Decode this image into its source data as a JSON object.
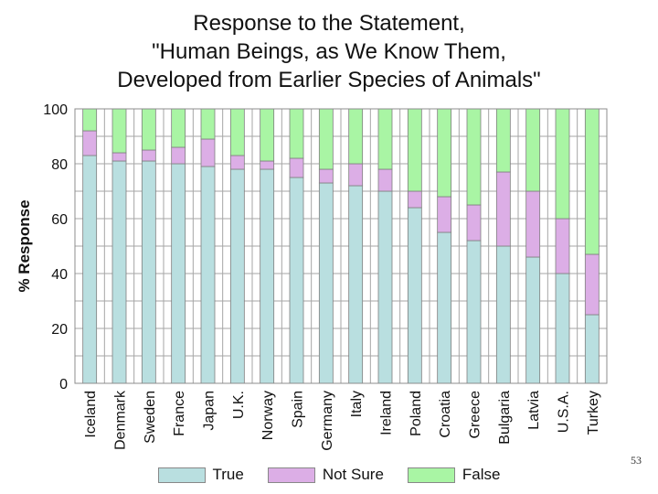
{
  "chart_data": {
    "type": "bar",
    "stacked": true,
    "title_lines": [
      "Response to the Statement,",
      "\"Human Beings, as We Know Them,",
      "Developed from Earlier Species of Animals\""
    ],
    "xlabel": "",
    "ylabel": "% Response",
    "ylim": [
      0,
      100
    ],
    "yticks": [
      0,
      20,
      40,
      60,
      80,
      100
    ],
    "grid": true,
    "legend_position": "bottom",
    "categories": [
      "Iceland",
      "Denmark",
      "Sweden",
      "France",
      "Japan",
      "U.K.",
      "Norway",
      "Spain",
      "Germany",
      "Italy",
      "Ireland",
      "Poland",
      "Croatia",
      "Greece",
      "Bulgaria",
      "Latvia",
      "U.S.A.",
      "Turkey"
    ],
    "series": [
      {
        "name": "True",
        "color": "#b9dfe0",
        "values": [
          83,
          81,
          81,
          80,
          79,
          78,
          78,
          75,
          73,
          72,
          70,
          64,
          55,
          52,
          50,
          46,
          40,
          25
        ]
      },
      {
        "name": "Not Sure",
        "color": "#dcaee6",
        "values": [
          9,
          3,
          4,
          6,
          10,
          5,
          3,
          7,
          5,
          8,
          8,
          6,
          13,
          13,
          27,
          24,
          20,
          22
        ]
      },
      {
        "name": "False",
        "color": "#a9f5a4",
        "values": [
          8,
          16,
          15,
          14,
          11,
          17,
          19,
          18,
          22,
          20,
          22,
          30,
          32,
          35,
          23,
          30,
          40,
          53
        ]
      }
    ]
  },
  "page_number": "53"
}
